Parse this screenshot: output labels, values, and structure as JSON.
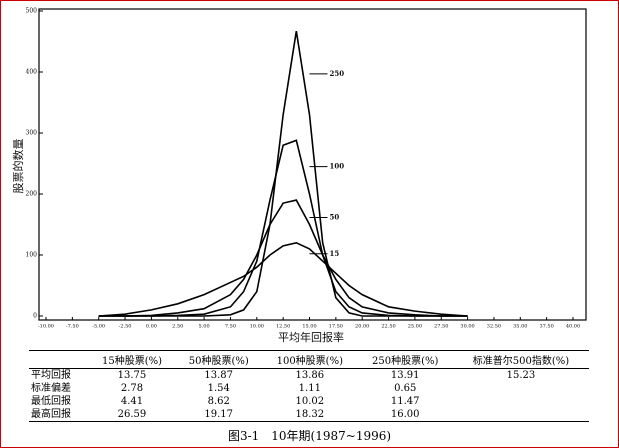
{
  "chart_data": {
    "type": "line",
    "ylabel": "股票的数量",
    "xlabel": "平均年回报率",
    "x": [
      -5,
      -2.5,
      0,
      2.5,
      5,
      7.5,
      8.75,
      10,
      11.25,
      12.5,
      13.75,
      15,
      16.25,
      17.5,
      18.75,
      20,
      22.5,
      25,
      27.5,
      30
    ],
    "series": [
      {
        "name": "250",
        "color": "#000",
        "values": [
          0,
          0,
          0,
          0,
          0,
          2,
          10,
          40,
          150,
          330,
          467,
          330,
          120,
          30,
          5,
          0,
          0,
          0,
          0,
          0
        ]
      },
      {
        "name": "100",
        "color": "#000",
        "values": [
          0,
          0,
          0,
          1,
          3,
          15,
          40,
          90,
          190,
          280,
          288,
          200,
          100,
          40,
          15,
          5,
          1,
          0,
          0,
          0
        ]
      },
      {
        "name": "50",
        "color": "#000",
        "values": [
          0,
          0,
          1,
          5,
          12,
          35,
          60,
          100,
          150,
          185,
          190,
          150,
          100,
          60,
          30,
          15,
          5,
          2,
          0,
          0
        ]
      },
      {
        "name": "15",
        "color": "#000",
        "values": [
          0,
          3,
          10,
          20,
          35,
          55,
          65,
          80,
          100,
          115,
          120,
          110,
          90,
          70,
          50,
          35,
          15,
          8,
          3,
          0
        ]
      }
    ],
    "xlim": [
      -10,
      40
    ],
    "ylim": [
      0,
      500
    ],
    "xticks": [
      {
        "value": -10,
        "label": "-10.00"
      },
      {
        "value": -7.5,
        "label": "-7.50"
      },
      {
        "value": -5,
        "label": "-5.00"
      },
      {
        "value": -2.5,
        "label": "-2.50"
      },
      {
        "value": 0,
        "label": "0.00"
      },
      {
        "value": 2.5,
        "label": "2.50"
      },
      {
        "value": 5,
        "label": "5.00"
      },
      {
        "value": 7.5,
        "label": "7.50"
      },
      {
        "value": 10,
        "label": "10.00"
      },
      {
        "value": 12.5,
        "label": "12.50"
      },
      {
        "value": 15,
        "label": "15.00"
      },
      {
        "value": 17.5,
        "label": "17.50"
      },
      {
        "value": 20,
        "label": "20.00"
      },
      {
        "value": 22.5,
        "label": "22.50"
      },
      {
        "value": 25,
        "label": "25.00"
      },
      {
        "value": 27.5,
        "label": "27.50"
      },
      {
        "value": 30,
        "label": "30.00"
      },
      {
        "value": 32.5,
        "label": "32.50"
      },
      {
        "value": 35,
        "label": "35.00"
      },
      {
        "value": 37.5,
        "label": "37.50"
      },
      {
        "value": 40,
        "label": "40.00"
      }
    ],
    "yticks": [
      0,
      100,
      200,
      300,
      400,
      500
    ]
  },
  "table": {
    "header": [
      "15种股票(%)",
      "50种股票(%)",
      "100种股票(%)",
      "250种股票(%)",
      "标准普尔500指数(%)"
    ],
    "rows": [
      [
        "平均回报",
        "13.75",
        "13.87",
        "13.86",
        "13.91",
        "15.23"
      ],
      [
        "标准偏差",
        "2.78",
        "1.54",
        "1.11",
        "0.65"
      ],
      [
        "最低回报",
        "4.41",
        "8.62",
        "10.02",
        "11.47"
      ],
      [
        "最高回报",
        "26.59",
        "19.17",
        "18.32",
        "16.00"
      ]
    ]
  },
  "caption": "图3-1　10年期(1987~1996)"
}
